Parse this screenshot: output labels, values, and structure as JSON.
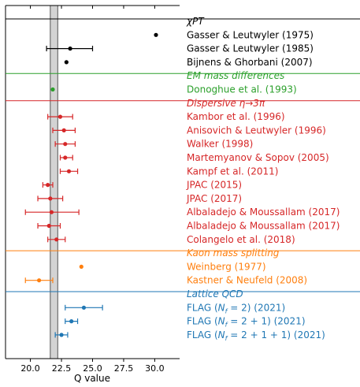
{
  "chart_data": {
    "type": "scatter",
    "xlabel": "Q value",
    "xlim": [
      18.0,
      32.0
    ],
    "xticks": [
      20.0,
      22.5,
      25.0,
      27.5,
      30.0
    ],
    "xtick_labels": [
      "20.0",
      "22.5",
      "25.0",
      "27.5",
      "30.0"
    ],
    "band": [
      21.6,
      22.2
    ],
    "band_center": 22.1,
    "groups": [
      {
        "name": "χPT",
        "color": "#000000",
        "points": [
          {
            "label": "Gasser & Leutwyler (1975)",
            "value": 30.1,
            "lo": null,
            "hi": null
          },
          {
            "label": "Gasser & Leutwyler (1985)",
            "value": 23.2,
            "lo": 21.3,
            "hi": 25.0
          },
          {
            "label": "Bijnens & Ghorbani (2007)",
            "value": 22.9,
            "lo": null,
            "hi": null
          }
        ]
      },
      {
        "name": "EM mass differences",
        "color": "#2ca02c",
        "points": [
          {
            "label": "Donoghue et al. (1993)",
            "value": 21.8,
            "lo": null,
            "hi": null
          }
        ]
      },
      {
        "name": "Dispersive η→3π",
        "color": "#d62728",
        "points": [
          {
            "label": "Kambor et al. (1996)",
            "value": 22.4,
            "lo": 21.4,
            "hi": 23.4
          },
          {
            "label": "Anisovich & Leutwyler (1996)",
            "value": 22.7,
            "lo": 21.8,
            "hi": 23.6
          },
          {
            "label": "Walker (1998)",
            "value": 22.8,
            "lo": 22.0,
            "hi": 23.6
          },
          {
            "label": "Martemyanov & Sopov (2005)",
            "value": 22.8,
            "lo": 22.4,
            "hi": 23.4
          },
          {
            "label": "Kampf et al. (2011)",
            "value": 23.1,
            "lo": 22.4,
            "hi": 23.8
          },
          {
            "label": "JPAC (2015)",
            "value": 21.4,
            "lo": 21.0,
            "hi": 21.8
          },
          {
            "label": "JPAC (2017)",
            "value": 21.6,
            "lo": 20.6,
            "hi": 22.6
          },
          {
            "label": "Albaladejo & Moussallam (2017)",
            "value": 21.7,
            "lo": 19.6,
            "hi": 23.9
          },
          {
            "label": "Albaladejo & Moussallam (2017)",
            "value": 21.5,
            "lo": 20.6,
            "hi": 22.4
          },
          {
            "label": "Colangelo et al. (2018)",
            "value": 22.1,
            "lo": 21.4,
            "hi": 22.8
          }
        ]
      },
      {
        "name": "Kaon mass splitting",
        "color": "#ff7f0e",
        "points": [
          {
            "label": "Weinberg (1977)",
            "value": 24.1,
            "lo": null,
            "hi": null
          },
          {
            "label": "Kastner & Neufeld (2008)",
            "value": 20.7,
            "lo": 19.6,
            "hi": 21.8
          }
        ]
      },
      {
        "name": "Lattice QCD",
        "color": "#1f77b4",
        "points": [
          {
            "label": "FLAG (N_f = 2) (2021)",
            "value": 24.3,
            "lo": 22.8,
            "hi": 25.8
          },
          {
            "label": "FLAG (N_f = 2 + 1) (2021)",
            "value": 23.3,
            "lo": 22.8,
            "hi": 23.8
          },
          {
            "label": "FLAG (N_f = 2 + 1 + 1) (2021)",
            "value": 22.5,
            "lo": 22.0,
            "hi": 23.0
          }
        ]
      }
    ]
  }
}
